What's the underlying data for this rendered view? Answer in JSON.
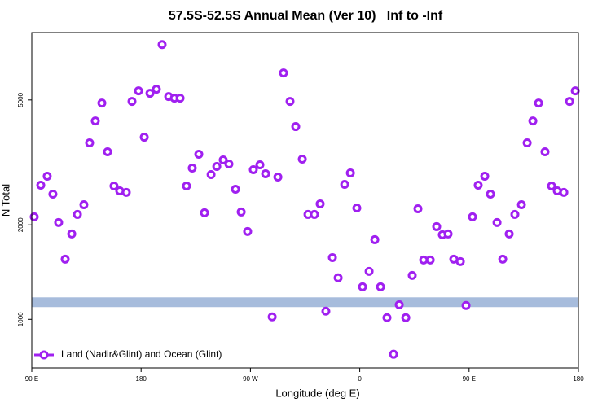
{
  "chart_data": {
    "type": "scatter",
    "title": "57.5S-52.5S Annual Mean (Ver 10)   Inf to -Inf",
    "xlabel": "Longitude (deg E)",
    "ylabel": "N Total",
    "xlim": [
      90,
      540
    ],
    "xticks": [
      {
        "value": 90,
        "label": "90 E"
      },
      {
        "value": 180,
        "label": "180"
      },
      {
        "value": 270,
        "label": "90 W"
      },
      {
        "value": 360,
        "label": "0"
      },
      {
        "value": 450,
        "label": "90 E"
      },
      {
        "value": 540,
        "label": "180"
      }
    ],
    "ylim": [
      700,
      8200
    ],
    "yscale": "log",
    "yticks": [
      1000,
      2000,
      5000
    ],
    "band_range": [
      1094,
      1175
    ],
    "band_color": "#a7bcdc",
    "legend": "lower left",
    "series": [
      {
        "name": "Land (Nadir&Glint) and Ocean (Glint)",
        "color": "#a020f0",
        "x": [
          92.0,
          97.4,
          102.7,
          107.4,
          112.1,
          117.5,
          122.9,
          127.6,
          132.9,
          137.6,
          142.3,
          147.7,
          152.4,
          157.7,
          162.4,
          167.8,
          172.5,
          177.9,
          182.6,
          187.3,
          192.6,
          197.3,
          202.7,
          207.4,
          212.1,
          217.4,
          222.1,
          227.5,
          232.2,
          237.6,
          242.3,
          247.6,
          252.3,
          257.7,
          262.4,
          267.7,
          272.4,
          277.8,
          282.5,
          287.9,
          292.6,
          297.2,
          302.6,
          307.3,
          312.7,
          317.4,
          322.7,
          327.4,
          332.1,
          337.5,
          342.2,
          347.6,
          352.3,
          357.6,
          362.3,
          367.7,
          372.4,
          377.1,
          382.4,
          387.8,
          392.5,
          397.9,
          403.2,
          407.9,
          412.6,
          418.0,
          423.3,
          428.0,
          432.7,
          437.4,
          442.8,
          447.5,
          452.8,
          457.5,
          462.9,
          467.6,
          473.0,
          477.7,
          483.0,
          487.7,
          493.1,
          497.8,
          502.5,
          507.2,
          512.5,
          517.9,
          522.6,
          528.0,
          532.7,
          537.4
        ],
        "values": [
          2121,
          2676,
          2858,
          2506,
          2034,
          1555,
          1871,
          2159,
          2319,
          3649,
          4287,
          4889,
          3418,
          2660,
          2567,
          2537,
          4947,
          5345,
          3805,
          5251,
          5411,
          7507,
          5127,
          5066,
          5066,
          2660,
          3033,
          3357,
          2185,
          2892,
          3069,
          3220,
          3125,
          2597,
          2198,
          1905,
          2997,
          3107,
          2910,
          1018,
          2841,
          6095,
          4947,
          4112,
          3239,
          2159,
          2159,
          2333,
          1062,
          1573,
          1356,
          2692,
          2927,
          2264,
          1269,
          1422,
          1794,
          1269,
          1012,
          774,
          1113,
          1012,
          1380,
          2251,
          1546,
          1546,
          1974,
          1860,
          1871,
          1555,
          1527,
          1107,
          2121,
          2676,
          2858,
          2506,
          2034,
          1555,
          1871,
          2159,
          2319,
          3649,
          4287,
          4889,
          3418,
          2660,
          2567,
          2537,
          4947,
          5345
        ]
      }
    ]
  }
}
